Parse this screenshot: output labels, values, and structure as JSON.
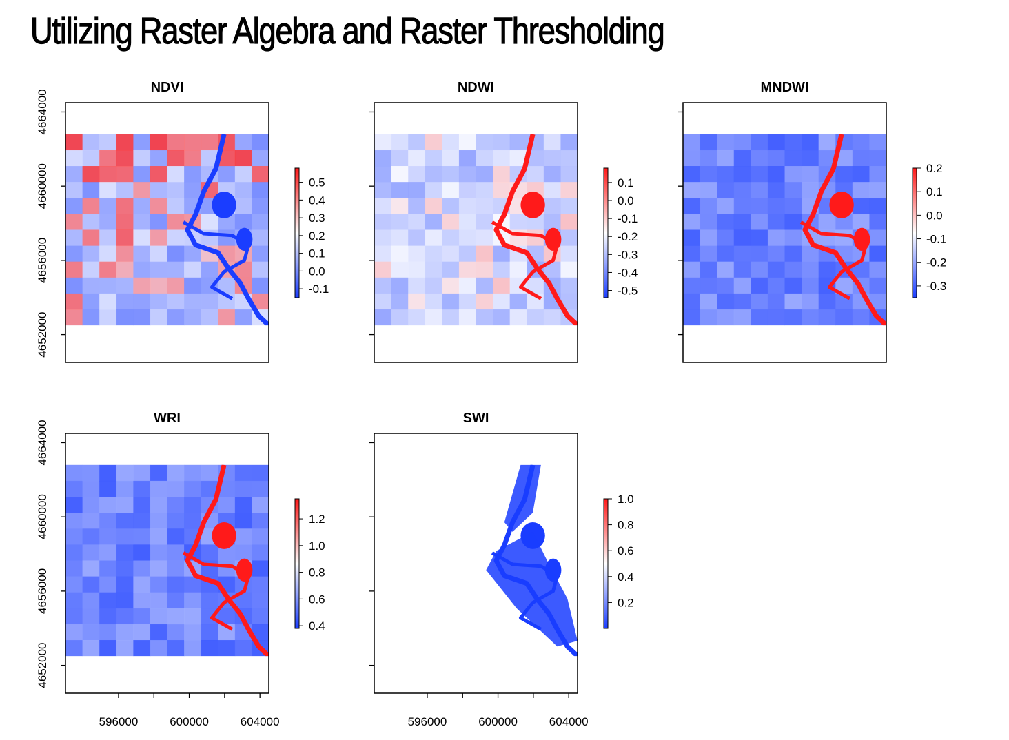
{
  "page": {
    "title": "Utilizing Raster Algebra and Raster Thresholding"
  },
  "colors": {
    "high": "#ff1a1a",
    "mid": "#ffffff",
    "low": "#1a3dff",
    "frame": "#000000"
  },
  "chart_data": [
    {
      "type": "heatmap",
      "title": "NDVI",
      "xlabel": "",
      "ylabel": "",
      "xlim": [
        593000,
        604500
      ],
      "ylim": [
        4650500,
        4664500
      ],
      "x_ticks": [
        596000,
        600000,
        604000
      ],
      "y_ticks": [
        4652000,
        4656000,
        4660000,
        4664000
      ],
      "x_tick_labels_shown": false,
      "y_tick_labels_shown": true,
      "legend": {
        "min": -0.15,
        "max": 0.58,
        "ticks": [
          "0.5",
          "0.4",
          "0.3",
          "0.2",
          "0.1",
          "0.0",
          "-0.1"
        ],
        "tick_values": [
          0.5,
          0.4,
          0.3,
          0.2,
          0.1,
          0.0,
          -0.1
        ]
      },
      "background": "mixed",
      "river": "low"
    },
    {
      "type": "heatmap",
      "title": "NDWI",
      "xlabel": "",
      "ylabel": "",
      "xlim": [
        593000,
        604500
      ],
      "ylim": [
        4650500,
        4664500
      ],
      "x_ticks": [
        596000,
        600000,
        604000
      ],
      "y_ticks": [
        4652000,
        4656000,
        4660000,
        4664000
      ],
      "x_tick_labels_shown": false,
      "y_tick_labels_shown": false,
      "legend": {
        "min": -0.54,
        "max": 0.18,
        "ticks": [
          "0.1",
          "0.0",
          "-0.1",
          "-0.2",
          "-0.3",
          "-0.4",
          "-0.5"
        ],
        "tick_values": [
          0.1,
          0.0,
          -0.1,
          -0.2,
          -0.3,
          -0.4,
          -0.5
        ]
      },
      "background": "light-blue",
      "river": "high"
    },
    {
      "type": "heatmap",
      "title": "MNDWI",
      "xlabel": "",
      "ylabel": "",
      "xlim": [
        593000,
        604500
      ],
      "ylim": [
        4650500,
        4664500
      ],
      "x_ticks": [
        596000,
        600000,
        604000
      ],
      "y_ticks": [
        4652000,
        4656000,
        4660000,
        4664000
      ],
      "x_tick_labels_shown": false,
      "y_tick_labels_shown": false,
      "legend": {
        "min": -0.35,
        "max": 0.2,
        "ticks": [
          "0.2",
          "0.1",
          "0.0",
          "-0.1",
          "-0.2",
          "-0.3"
        ],
        "tick_values": [
          0.2,
          0.1,
          0.0,
          -0.1,
          -0.2,
          -0.3
        ]
      },
      "background": "blue",
      "river": "high"
    },
    {
      "type": "heatmap",
      "title": "WRI",
      "xlabel": "",
      "ylabel": "",
      "xlim": [
        593000,
        604500
      ],
      "ylim": [
        4650500,
        4664500
      ],
      "x_ticks": [
        596000,
        600000,
        604000
      ],
      "y_ticks": [
        4652000,
        4656000,
        4660000,
        4664000
      ],
      "x_tick_labels_shown": true,
      "y_tick_labels_shown": true,
      "legend": {
        "min": 0.38,
        "max": 1.35,
        "ticks": [
          "1.2",
          "1.0",
          "0.8",
          "0.6",
          "0.4"
        ],
        "tick_values": [
          1.2,
          1.0,
          0.8,
          0.6,
          0.4
        ]
      },
      "background": "blue",
      "river": "high"
    },
    {
      "type": "heatmap",
      "title": "SWI",
      "xlabel": "",
      "ylabel": "",
      "xlim": [
        593000,
        604500
      ],
      "ylim": [
        4650500,
        4664500
      ],
      "x_ticks": [
        596000,
        600000,
        604000
      ],
      "y_ticks": [
        4652000,
        4656000,
        4660000,
        4664000
      ],
      "x_tick_labels_shown": true,
      "y_tick_labels_shown": false,
      "legend": {
        "min": 0.0,
        "max": 1.0,
        "ticks": [
          "1.0",
          "0.8",
          "0.6",
          "0.4",
          "0.2"
        ],
        "tick_values": [
          1.0,
          0.8,
          0.6,
          0.4,
          0.2
        ]
      },
      "background": "white",
      "river": "low"
    }
  ]
}
